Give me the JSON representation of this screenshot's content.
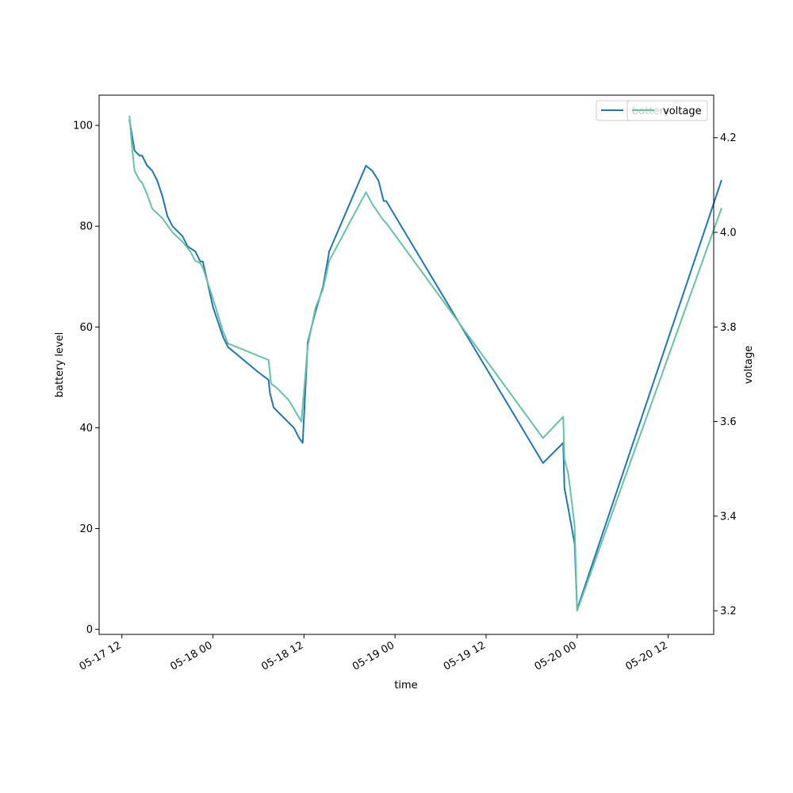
{
  "chart_data": {
    "type": "line",
    "xlabel": "time",
    "ylabel": "battery level",
    "y2label": "voltage",
    "x_ticks": [
      "05-17 12",
      "05-18 00",
      "05-18 12",
      "05-19 00",
      "05-19 12",
      "05-20 00",
      "05-20 12"
    ],
    "xlim": [
      "05-17 09:00",
      "05-20 18:00"
    ],
    "ylim": [
      -1,
      106
    ],
    "y_ticks": [
      0,
      20,
      40,
      60,
      80,
      100
    ],
    "y2lim": [
      3.15,
      4.29
    ],
    "y2_ticks": [
      3.2,
      3.4,
      3.6,
      3.8,
      4.0,
      4.2
    ],
    "legend_position": "top-right",
    "series": [
      {
        "name": "battery",
        "axis": "left",
        "color": "#1f77b4",
        "points": [
          [
            "05-17 13:00",
            101
          ],
          [
            "05-17 13:20",
            98
          ],
          [
            "05-17 13:40",
            95
          ],
          [
            "05-17 14:20",
            94
          ],
          [
            "05-17 14:40",
            94
          ],
          [
            "05-17 15:20",
            92
          ],
          [
            "05-17 16:00",
            91
          ],
          [
            "05-17 16:40",
            89
          ],
          [
            "05-17 17:20",
            86
          ],
          [
            "05-17 18:00",
            82
          ],
          [
            "05-17 18:40",
            80
          ],
          [
            "05-17 20:00",
            78
          ],
          [
            "05-17 20:40",
            76
          ],
          [
            "05-17 21:40",
            75
          ],
          [
            "05-17 22:20",
            73
          ],
          [
            "05-17 22:40",
            73
          ],
          [
            "05-18 00:00",
            64
          ],
          [
            "05-18 01:20",
            58
          ],
          [
            "05-18 02:00",
            56
          ],
          [
            "05-18 06:00",
            51
          ],
          [
            "05-18 07:20",
            49.5
          ],
          [
            "05-18 07:30",
            47
          ],
          [
            "05-18 08:00",
            44
          ],
          [
            "05-18 10:40",
            40
          ],
          [
            "05-18 11:20",
            38
          ],
          [
            "05-18 11:50",
            37
          ],
          [
            "05-18 12:30",
            57
          ],
          [
            "05-18 13:30",
            63
          ],
          [
            "05-18 14:30",
            68
          ],
          [
            "05-18 15:20",
            75
          ],
          [
            "05-18 20:10",
            92
          ],
          [
            "05-18 21:00",
            91
          ],
          [
            "05-18 21:50",
            89
          ],
          [
            "05-18 22:30",
            85
          ],
          [
            "05-18 22:50",
            85
          ],
          [
            "05-19 19:30",
            33
          ],
          [
            "05-19 22:10",
            37
          ],
          [
            "05-19 22:20",
            28
          ],
          [
            "05-19 22:50",
            24
          ],
          [
            "05-19 23:40",
            17
          ],
          [
            "05-20 00:00",
            4
          ],
          [
            "05-20 19:00",
            89
          ]
        ]
      },
      {
        "name": "voltage",
        "axis": "right",
        "color": "#66c2a5",
        "points": [
          [
            "05-17 13:00",
            4.245
          ],
          [
            "05-17 13:20",
            4.18
          ],
          [
            "05-17 13:40",
            4.13
          ],
          [
            "05-17 14:20",
            4.11
          ],
          [
            "05-17 14:40",
            4.105
          ],
          [
            "05-17 15:20",
            4.08
          ],
          [
            "05-17 16:00",
            4.05
          ],
          [
            "05-17 17:20",
            4.03
          ],
          [
            "05-17 18:40",
            4.0
          ],
          [
            "05-17 20:00",
            3.98
          ],
          [
            "05-17 21:00",
            3.96
          ],
          [
            "05-17 21:40",
            3.94
          ],
          [
            "05-17 22:20",
            3.935
          ],
          [
            "05-17 22:40",
            3.925
          ],
          [
            "05-18 00:00",
            3.86
          ],
          [
            "05-18 01:20",
            3.79
          ],
          [
            "05-18 02:00",
            3.765
          ],
          [
            "05-18 07:20",
            3.73
          ],
          [
            "05-18 07:40",
            3.68
          ],
          [
            "05-18 08:30",
            3.67
          ],
          [
            "05-18 10:00",
            3.645
          ],
          [
            "05-18 11:40",
            3.6
          ],
          [
            "05-18 12:30",
            3.76
          ],
          [
            "05-18 13:00",
            3.8
          ],
          [
            "05-18 13:30",
            3.84
          ],
          [
            "05-18 14:30",
            3.88
          ],
          [
            "05-18 15:20",
            3.94
          ],
          [
            "05-18 20:10",
            4.085
          ],
          [
            "05-18 21:00",
            4.06
          ],
          [
            "05-18 21:50",
            4.04
          ],
          [
            "05-18 22:30",
            4.025
          ],
          [
            "05-18 22:50",
            4.02
          ],
          [
            "05-19 19:30",
            3.565
          ],
          [
            "05-19 22:10",
            3.61
          ],
          [
            "05-19 22:20",
            3.52
          ],
          [
            "05-19 22:50",
            3.49
          ],
          [
            "05-19 23:40",
            3.38
          ],
          [
            "05-20 00:00",
            3.2
          ],
          [
            "05-20 19:00",
            4.05
          ]
        ]
      }
    ]
  }
}
